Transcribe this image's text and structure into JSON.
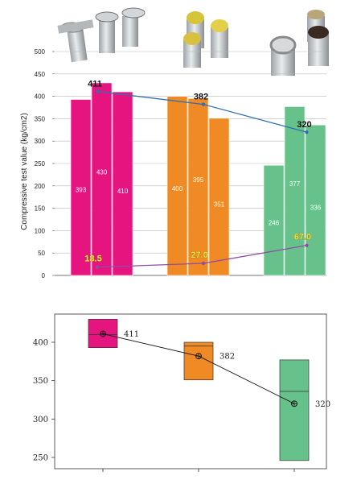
{
  "chart_data": [
    {
      "type": "bar",
      "ylabel": "Compressive test value (kg/cm2)",
      "ylim": [
        0,
        500
      ],
      "yticks": [
        0,
        50,
        100,
        150,
        200,
        250,
        300,
        350,
        400,
        450,
        500
      ],
      "grid": true,
      "groups": [
        {
          "color": "#e6147f",
          "values": [
            393,
            430,
            410
          ],
          "mean": 411,
          "mean_label": "411",
          "low": 18.5,
          "low_label": "18.5"
        },
        {
          "color": "#f08a24",
          "values": [
            400,
            395,
            351
          ],
          "mean": 382,
          "mean_label": "382",
          "low": 27.0,
          "low_label": "27.0"
        },
        {
          "color": "#66c28a",
          "values": [
            246,
            377,
            336
          ],
          "mean": 320,
          "mean_label": "320",
          "low": 67.0,
          "low_label": "67.0"
        }
      ],
      "bar_labels": [
        "393",
        "430",
        "410",
        "400",
        "395",
        "351",
        "246",
        "377",
        "336"
      ],
      "mean_line_color": "#2f6fb0",
      "low_line_color": "#8e4fa3",
      "photos": [
        "steel-can-specimens-photo",
        "yellow-capped-specimens-photo",
        "dark-capped-specimens-photo"
      ]
    },
    {
      "type": "box",
      "ylim": [
        245,
        435
      ],
      "yticks": [
        250,
        300,
        350,
        400
      ],
      "boxes": [
        {
          "color": "#e6147f",
          "min": 393,
          "median": 410,
          "max": 430,
          "mean": 411,
          "label": "411"
        },
        {
          "color": "#f08a24",
          "min": 351,
          "median": 395,
          "max": 400,
          "mean": 382,
          "label": "382"
        },
        {
          "color": "#66c28a",
          "min": 246,
          "median": 336,
          "max": 377,
          "mean": 320,
          "label": "320"
        }
      ]
    }
  ]
}
